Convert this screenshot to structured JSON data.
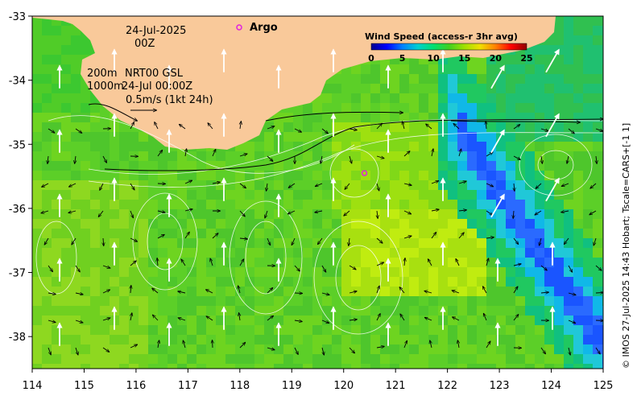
{
  "map": {
    "date_line": "24-Jul-2025",
    "time_line": "00Z",
    "depth_line_1": "200m",
    "depth_line_2": "1000m",
    "product_line": "NRT00 GSL",
    "valid_time": "24-Jul 00:00Z",
    "vector_scale_label": "0.5m/s (1kt 24h)",
    "argo_label": "Argo",
    "credit": "© IMOS 27-Jul-2025 14:43 Hobart; Tscale=CARS+[-1 1]",
    "x_ticks": [
      "114",
      "115",
      "116",
      "117",
      "118",
      "119",
      "120",
      "121",
      "122",
      "123",
      "124",
      "125"
    ],
    "y_ticks": [
      "-33",
      "-34",
      "-35",
      "-36",
      "-37",
      "-38"
    ],
    "lon_range": [
      114,
      125
    ],
    "lat_range": [
      -38.5,
      -33
    ],
    "land_color": "#f9c99a",
    "argo_float": {
      "lon": 120.4,
      "lat": -35.45
    }
  },
  "colorbar": {
    "title": "Wind Speed (access-r 3hr avg)",
    "ticks": [
      "0",
      "5",
      "10",
      "15",
      "20",
      "25"
    ],
    "range": [
      0,
      25
    ],
    "stops": [
      "#00008f",
      "#0000ff",
      "#0080ff",
      "#00d0d0",
      "#00e070",
      "#40d020",
      "#a0e000",
      "#f0e000",
      "#ff8000",
      "#ff0000",
      "#8f0000"
    ]
  }
}
